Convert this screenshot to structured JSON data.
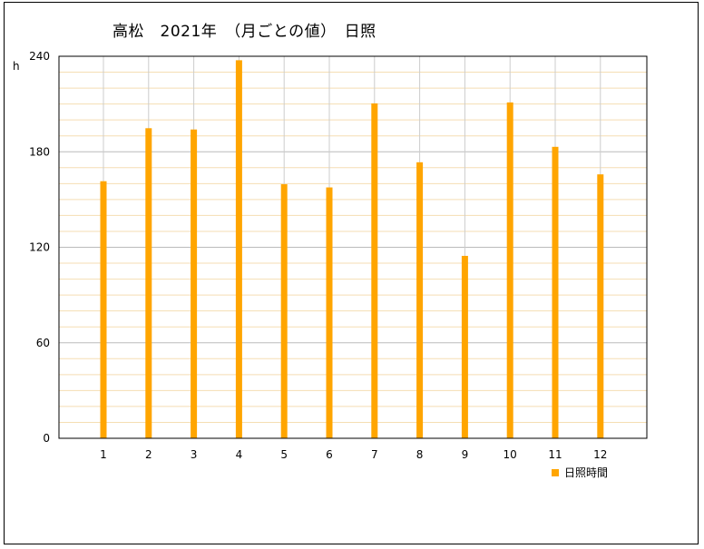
{
  "chart_data": {
    "type": "bar",
    "title": "高松　2021年　（月ごとの値）　日照",
    "ylabel": "h",
    "xlabel": "",
    "categories": [
      "1",
      "2",
      "3",
      "4",
      "5",
      "6",
      "7",
      "8",
      "9",
      "10",
      "11",
      "12"
    ],
    "series": [
      {
        "name": "日照時間",
        "values": [
          161.5,
          194.8,
          194.0,
          237.5,
          159.6,
          157.6,
          210.4,
          173.4,
          114.6,
          211.0,
          183.1,
          165.8
        ]
      }
    ],
    "ylim": [
      0,
      240
    ],
    "yticks": [
      0,
      60,
      120,
      180,
      240
    ],
    "grid": true,
    "legend": "bottom-right",
    "colors": {
      "bar": "#ffa500",
      "minor_grid": "#f5deb3",
      "major_grid": "#bbbbbb",
      "category_line": "#cccccc"
    }
  }
}
